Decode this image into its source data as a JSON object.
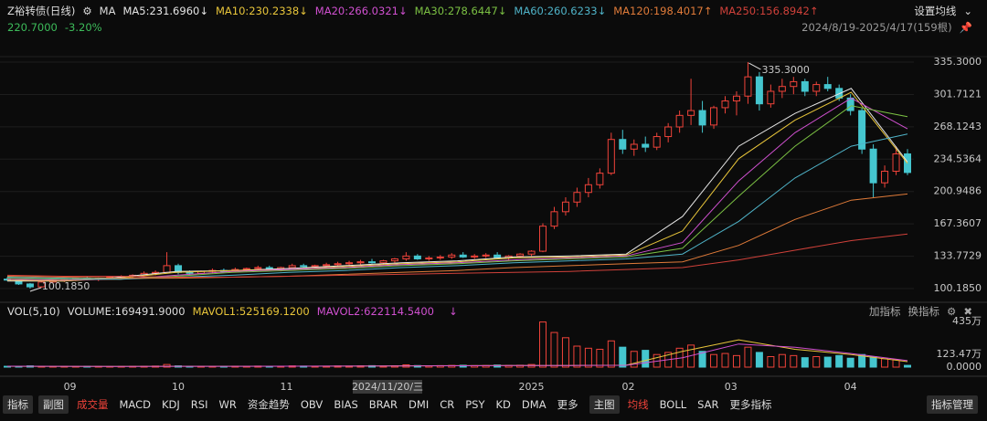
{
  "header": {
    "title": "Z裕转债(日线)",
    "ma_button": "MA",
    "settings": "设置均线",
    "price": "220.7000",
    "change": "-3.20%",
    "range": "2024/8/19-2025/4/17(159根)"
  },
  "volume_header": {
    "name": "VOL(5,10)",
    "add": "加指标",
    "switch": "换指标"
  },
  "toolbar": {
    "left": [
      "指标",
      "副图"
    ],
    "sub": [
      "成交量",
      "MACD",
      "KDJ",
      "RSI",
      "WR",
      "资金趋势",
      "OBV",
      "BIAS",
      "BRAR",
      "DMI",
      "CR",
      "PSY",
      "KD",
      "DMA",
      "更多"
    ],
    "sub_active": 0,
    "main_button": "主图",
    "main": [
      "均线",
      "BOLL",
      "SAR",
      "更多指标"
    ],
    "main_active": 0,
    "manage": "指标管理"
  },
  "chart_data": [
    {
      "type": "candlestick",
      "up_color": "#f0433a",
      "down_color": "#45c6cf",
      "ylim": [
        94.5,
        342.9
      ],
      "yticks": [
        {
          "value": 335.3,
          "label": "335.3000"
        },
        301.7121,
        268.1243,
        234.5364,
        200.9486,
        167.3607,
        133.7729,
        {
          "value": 100.185,
          "label": "100.1850"
        }
      ],
      "grid": true,
      "xticks": [
        {
          "value": 5.5,
          "label": "09"
        },
        {
          "value": 15,
          "label": "10"
        },
        {
          "value": 24.5,
          "label": "11"
        },
        {
          "value": 46,
          "label": "2025"
        },
        {
          "value": 54.5,
          "label": "02"
        },
        {
          "value": 63.5,
          "label": "03"
        },
        {
          "value": 74,
          "label": "04"
        }
      ],
      "cursor_label": "2024/11/20/三",
      "annotations": [
        "335.3000",
        "100.1850"
      ],
      "candles": [
        [
          110,
          112,
          108,
          109
        ],
        [
          109,
          110,
          104,
          105
        ],
        [
          105,
          106,
          100.185,
          102
        ],
        [
          102,
          108,
          101,
          107
        ],
        [
          107,
          110,
          106,
          109
        ],
        [
          109,
          111,
          107,
          110
        ],
        [
          110,
          112,
          108,
          111
        ],
        [
          111,
          113,
          109,
          110
        ],
        [
          110,
          112,
          108,
          111
        ],
        [
          111,
          113,
          110,
          112
        ],
        [
          112,
          114,
          110,
          113
        ],
        [
          113,
          115,
          111,
          114
        ],
        [
          114,
          118,
          112,
          116
        ],
        [
          116,
          119,
          114,
          117
        ],
        [
          117,
          138,
          116,
          124
        ],
        [
          124,
          126,
          115,
          117
        ],
        [
          117,
          119,
          114,
          116
        ],
        [
          116,
          119,
          115,
          118
        ],
        [
          118,
          121,
          116,
          119
        ],
        [
          119,
          121,
          117,
          118
        ],
        [
          118,
          122,
          117,
          120
        ],
        [
          120,
          122,
          118,
          121
        ],
        [
          121,
          124,
          119,
          122
        ],
        [
          122,
          124,
          119,
          120
        ],
        [
          120,
          123,
          118,
          122
        ],
        [
          122,
          126,
          121,
          124
        ],
        [
          124,
          126,
          122,
          123
        ],
        [
          123,
          125,
          121,
          124
        ],
        [
          124,
          127,
          122,
          125
        ],
        [
          125,
          128,
          123,
          126
        ],
        [
          126,
          129,
          124,
          127
        ],
        [
          127,
          130,
          125,
          128
        ],
        [
          128,
          131,
          126,
          127
        ],
        [
          127,
          130,
          125,
          129
        ],
        [
          129,
          132,
          127,
          131
        ],
        [
          131,
          138,
          129,
          134
        ],
        [
          134,
          136,
          130,
          131
        ],
        [
          131,
          134,
          129,
          132
        ],
        [
          132,
          135,
          130,
          133
        ],
        [
          133,
          137,
          131,
          135
        ],
        [
          135,
          138,
          132,
          133
        ],
        [
          133,
          136,
          131,
          134
        ],
        [
          134,
          137,
          132,
          135
        ],
        [
          135,
          138,
          131,
          132
        ],
        [
          132,
          135,
          130,
          134
        ],
        [
          134,
          137,
          132,
          136
        ],
        [
          136,
          140,
          134,
          139
        ],
        [
          139,
          168,
          138,
          165
        ],
        [
          165,
          185,
          162,
          180
        ],
        [
          180,
          195,
          176,
          190
        ],
        [
          190,
          205,
          185,
          200
        ],
        [
          200,
          215,
          195,
          208
        ],
        [
          208,
          225,
          204,
          220
        ],
        [
          220,
          262,
          218,
          255
        ],
        [
          255,
          265,
          240,
          245
        ],
        [
          245,
          255,
          238,
          250
        ],
        [
          250,
          258,
          242,
          247
        ],
        [
          247,
          262,
          244,
          258
        ],
        [
          258,
          272,
          252,
          268
        ],
        [
          268,
          285,
          262,
          280
        ],
        [
          280,
          318,
          270,
          285
        ],
        [
          285,
          295,
          262,
          270
        ],
        [
          270,
          290,
          266,
          288
        ],
        [
          288,
          300,
          282,
          295
        ],
        [
          295,
          305,
          280,
          300
        ],
        [
          300,
          335.3,
          292,
          320
        ],
        [
          320,
          325,
          285,
          292
        ],
        [
          292,
          312,
          288,
          305
        ],
        [
          305,
          318,
          298,
          310
        ],
        [
          310,
          320,
          302,
          315
        ],
        [
          315,
          318,
          300,
          305
        ],
        [
          305,
          315,
          300,
          312
        ],
        [
          312,
          320,
          305,
          308
        ],
        [
          308,
          312,
          295,
          298
        ],
        [
          298,
          302,
          280,
          285
        ],
        [
          285,
          288,
          240,
          245
        ],
        [
          245,
          250,
          195,
          210
        ],
        [
          210,
          228,
          205,
          222
        ],
        [
          222,
          248,
          218,
          240
        ],
        [
          240,
          245,
          218,
          220.7
        ]
      ],
      "series": [
        {
          "label": "MA5:231.6960↓",
          "color": "#e6e6e6",
          "values": [
            108,
            108,
            112,
            118,
            119,
            121,
            124,
            127,
            129,
            133,
            134,
            136,
            175,
            248,
            282,
            308,
            231.696
          ]
        },
        {
          "label": "MA10:230.2338↓",
          "color": "#e8c53a",
          "values": [
            109,
            108,
            111,
            117,
            119,
            120,
            123,
            126,
            128,
            132,
            133,
            135,
            160,
            235,
            275,
            304,
            230.2338
          ]
        },
        {
          "label": "MA20:266.0321↓",
          "color": "#d050d0",
          "values": [
            110,
            109,
            110,
            114,
            118,
            120,
            122,
            125,
            127,
            130,
            132,
            134,
            148,
            212,
            262,
            298,
            266.0321
          ]
        },
        {
          "label": "MA30:278.6447↓",
          "color": "#7bc043",
          "values": [
            111,
            110,
            110,
            113,
            117,
            119,
            121,
            124,
            126,
            129,
            131,
            133,
            142,
            196,
            248,
            290,
            278.6447
          ]
        },
        {
          "label": "MA60:260.6233↓",
          "color": "#4fb3c8",
          "values": [
            112,
            111,
            110,
            112,
            114,
            117,
            119,
            122,
            124,
            127,
            129,
            131,
            136,
            170,
            215,
            248,
            260.6233
          ]
        },
        {
          "label": "MA120:198.4017↑",
          "color": "#e07b39",
          "values": [
            113,
            112,
            111,
            111,
            112,
            113,
            115,
            117,
            119,
            122,
            124,
            126,
            128,
            145,
            172,
            192,
            198.4017
          ]
        },
        {
          "label": "MA250:156.8942↑",
          "color": "#d0413a",
          "values": [
            114,
            113,
            113,
            112,
            112,
            113,
            114,
            115,
            116,
            117,
            118,
            120,
            122,
            130,
            140,
            150,
            156.8942
          ]
        }
      ]
    },
    {
      "type": "bar",
      "ylim": [
        0,
        435
      ],
      "yticks": [
        {
          "value": 435,
          "label": "435万"
        },
        {
          "value": 123.47,
          "label": "123.47万"
        },
        {
          "value": 0,
          "label": "0.0000"
        }
      ],
      "volume_label": "VOLUME:169491.9000",
      "values": [
        8,
        6,
        12,
        7,
        5,
        6,
        5,
        7,
        6,
        5,
        6,
        7,
        8,
        10,
        25,
        12,
        8,
        7,
        6,
        8,
        9,
        7,
        10,
        8,
        9,
        12,
        10,
        8,
        9,
        11,
        10,
        12,
        14,
        10,
        13,
        22,
        15,
        12,
        14,
        16,
        18,
        14,
        15,
        20,
        16,
        18,
        25,
        430,
        330,
        280,
        200,
        180,
        170,
        250,
        190,
        150,
        160,
        120,
        140,
        180,
        210,
        150,
        120,
        130,
        110,
        190,
        140,
        100,
        120,
        110,
        90,
        100,
        95,
        110,
        85,
        120,
        100,
        80,
        70,
        16.9
      ],
      "series": [
        {
          "label": "MAVOL1:525169.1200",
          "color": "#e8c53a",
          "values": [
            8,
            7,
            6,
            8,
            8,
            9,
            10,
            12,
            14,
            16,
            16,
            18,
            150,
            260,
            170,
            120,
            52.5
          ]
        },
        {
          "label": "MAVOL2:622114.5400",
          "color": "#d050d0",
          "values": [
            9,
            8,
            7,
            8,
            8,
            9,
            10,
            11,
            13,
            15,
            16,
            17,
            90,
            220,
            190,
            130,
            62.2
          ]
        }
      ]
    }
  ]
}
